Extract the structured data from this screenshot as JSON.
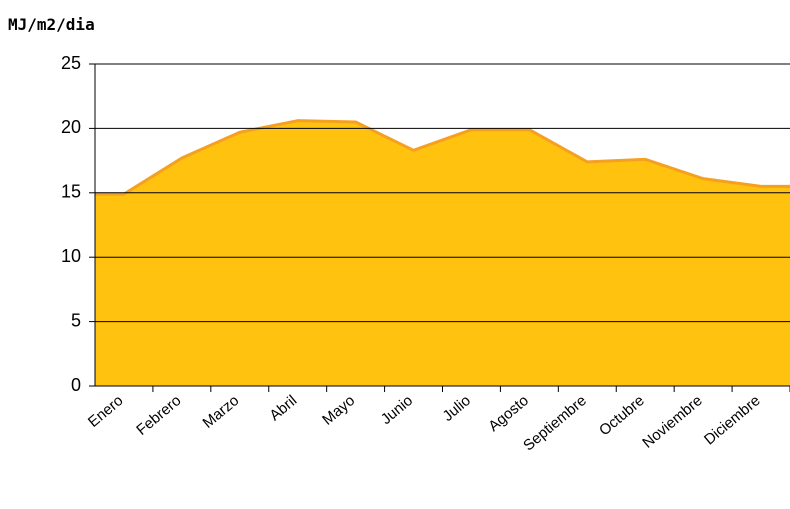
{
  "chart_data": {
    "type": "area",
    "title": "MJ/m2/dia",
    "categories": [
      "Enero",
      "Febrero",
      "Marzo",
      "Abril",
      "Mayo",
      "Junio",
      "Julio",
      "Agosto",
      "Septiembre",
      "Octubre",
      "Noviembre",
      "Diciembre"
    ],
    "values": [
      14.9,
      17.7,
      19.7,
      20.6,
      20.5,
      18.3,
      19.9,
      19.9,
      17.4,
      17.6,
      16.1,
      15.5
    ],
    "color": "#FFC20E",
    "line_color": "#F5A020",
    "ylim": [
      0,
      25
    ],
    "yticks": [
      0,
      5,
      10,
      15,
      20,
      25
    ],
    "grid": true
  }
}
